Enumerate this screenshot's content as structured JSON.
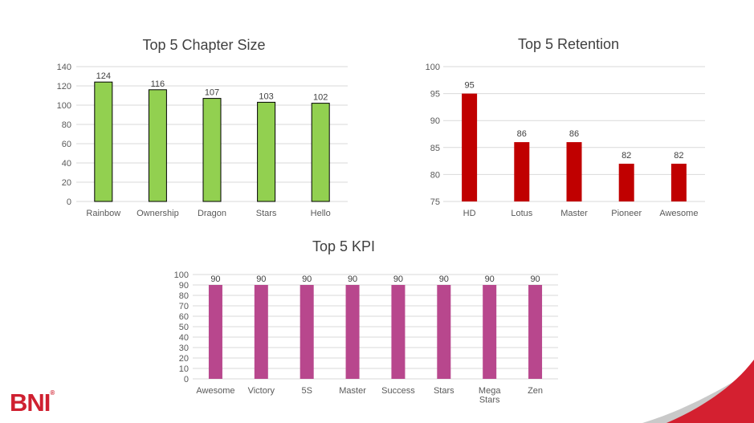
{
  "chart_data": [
    {
      "type": "bar",
      "title": "Top 5 Chapter Size",
      "categories": [
        "Rainbow",
        "Ownership",
        "Dragon",
        "Stars",
        "Hello"
      ],
      "values": [
        124,
        116,
        107,
        103,
        102
      ],
      "ylim": [
        0,
        140
      ],
      "yticks": [
        0,
        20,
        40,
        60,
        80,
        100,
        120,
        140
      ],
      "data_labels": true,
      "grid": true,
      "color": "#92d050",
      "stroke": "#000000"
    },
    {
      "type": "bar",
      "title": "Top 5 Retention",
      "categories": [
        "HD",
        "Lotus",
        "Master",
        "Pioneer",
        "Awesome"
      ],
      "values": [
        95,
        86,
        86,
        82,
        82
      ],
      "ylim": [
        75,
        100
      ],
      "yticks": [
        75,
        80,
        85,
        90,
        95,
        100
      ],
      "data_labels": true,
      "grid": true,
      "color": "#c00000"
    },
    {
      "type": "bar",
      "title": "Top 5 KPI",
      "categories": [
        "Awesome",
        "Victory",
        "5S",
        "Master",
        "Success",
        "Stars",
        [
          "Mega",
          "Stars"
        ],
        "Zen"
      ],
      "values": [
        90,
        90,
        90,
        90,
        90,
        90,
        90,
        90
      ],
      "ylim": [
        0,
        100
      ],
      "yticks": [
        0,
        10,
        20,
        30,
        40,
        50,
        60,
        70,
        80,
        90,
        100
      ],
      "data_labels": true,
      "grid": true,
      "color": "#b8478d"
    }
  ],
  "logo": {
    "text": "BNI",
    "mark": "®",
    "color": "#cf2030"
  },
  "colors": {
    "swoosh_red": "#d42030",
    "swoosh_grey": "#c9c9c9",
    "grid": "#d9d9d9",
    "axis_text": "#595959"
  }
}
